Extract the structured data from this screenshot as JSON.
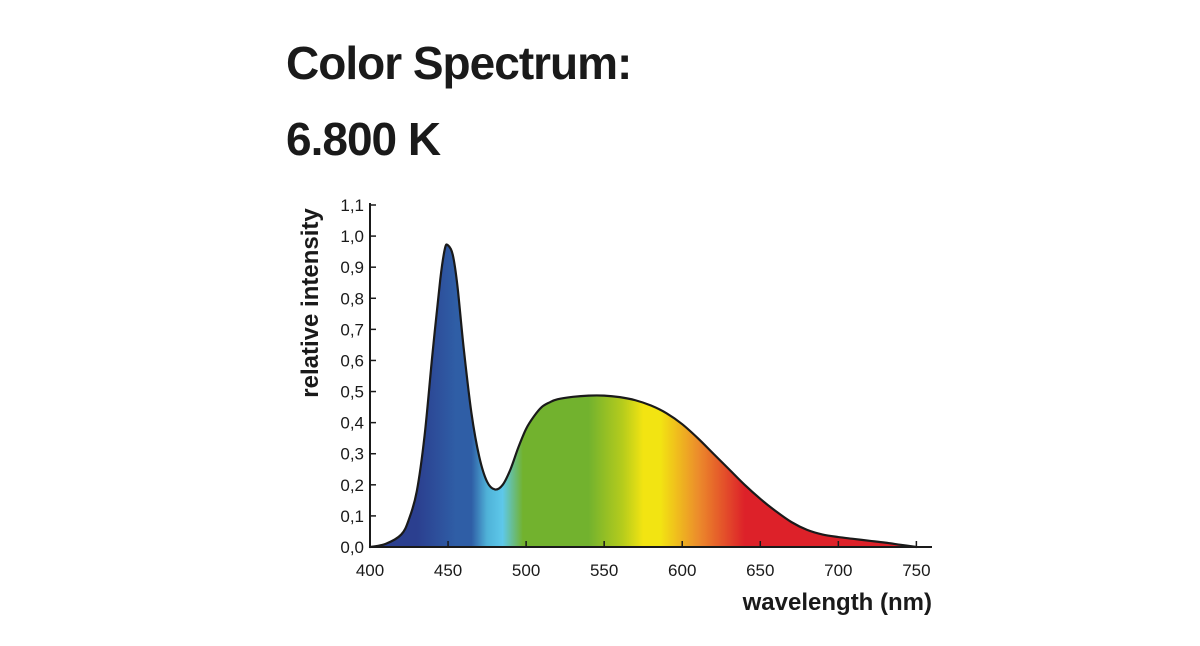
{
  "chart_data": {
    "type": "area",
    "title": [
      "Color Spectrum:",
      "6.800 K"
    ],
    "xlabel": "wavelength  (nm)",
    "ylabel": "relative intensity",
    "xlim": [
      400,
      760
    ],
    "ylim": [
      0,
      1.1
    ],
    "x_ticks": [
      400,
      450,
      500,
      550,
      600,
      650,
      700,
      750
    ],
    "x_tick_labels": [
      "400",
      "450",
      "500",
      "550",
      "600",
      "650",
      "700",
      "750"
    ],
    "y_ticks": [
      0,
      0.1,
      0.2,
      0.3,
      0.4,
      0.5,
      0.6,
      0.7,
      0.8,
      0.9,
      1.0,
      1.1
    ],
    "y_tick_labels": [
      "0,0",
      "0,1",
      "0,2",
      "0,3",
      "0,4",
      "0,5",
      "0,6",
      "0,7",
      "0,8",
      "0,9",
      "1,0",
      "1,1"
    ],
    "grid": false,
    "fill": "spectral gradient (blue → cyan → green → yellow → orange → red)",
    "line_color": "#1a1a1a",
    "series": [
      {
        "x": [
          400,
          410,
          420,
          425,
          430,
          435,
          440,
          445,
          448,
          450,
          453,
          456,
          460,
          465,
          470,
          475,
          480,
          485,
          490,
          495,
          500,
          505,
          510,
          515,
          520,
          530,
          540,
          550,
          560,
          570,
          580,
          590,
          600,
          610,
          620,
          630,
          640,
          650,
          660,
          670,
          680,
          690,
          700,
          710,
          720,
          730,
          740,
          750
        ],
        "y": [
          0.0,
          0.01,
          0.04,
          0.09,
          0.18,
          0.36,
          0.62,
          0.86,
          0.96,
          0.97,
          0.94,
          0.84,
          0.64,
          0.43,
          0.29,
          0.21,
          0.185,
          0.2,
          0.25,
          0.32,
          0.38,
          0.42,
          0.45,
          0.465,
          0.475,
          0.483,
          0.487,
          0.487,
          0.482,
          0.472,
          0.455,
          0.43,
          0.395,
          0.35,
          0.3,
          0.25,
          0.2,
          0.155,
          0.115,
          0.08,
          0.055,
          0.04,
          0.032,
          0.026,
          0.02,
          0.014,
          0.007,
          0.0
        ]
      }
    ],
    "colors": {
      "violet_blue": "#2b3f8f",
      "blue": "#2f5ea6",
      "light_blue": "#4fb2d8",
      "cyan": "#5ec8ea",
      "green": "#72b22e",
      "yellow_green": "#b6cc1c",
      "yellow": "#f2e412",
      "orange": "#ec8d2b",
      "red": "#dd2129"
    }
  }
}
